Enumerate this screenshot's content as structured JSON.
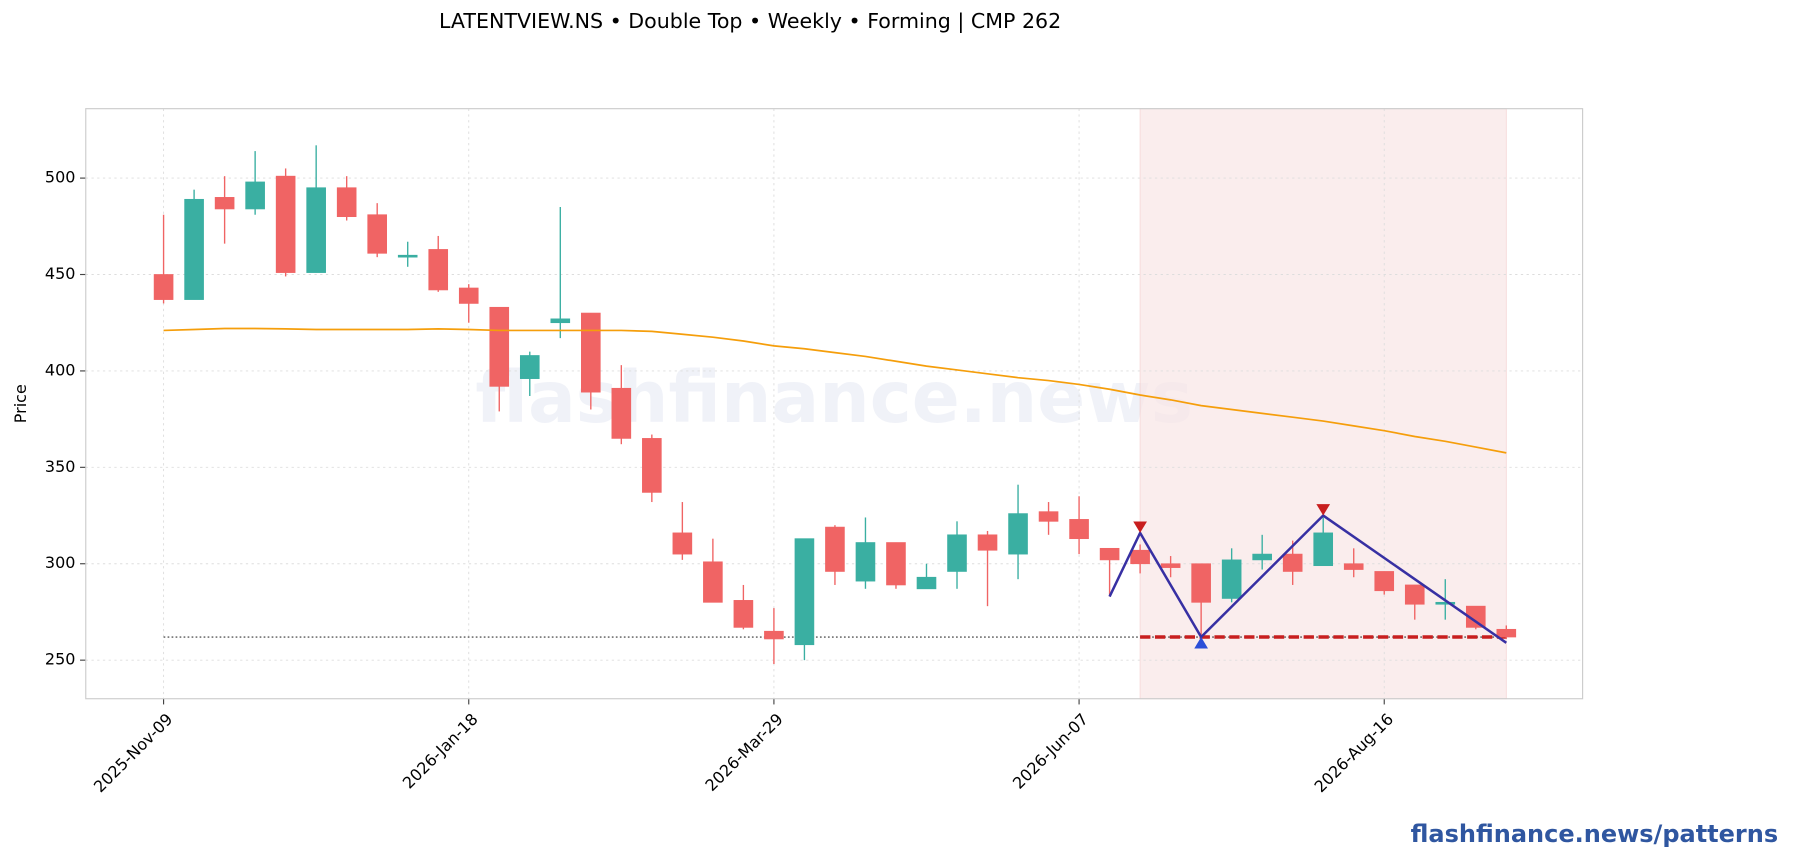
{
  "chart_data": {
    "type": "candlestick",
    "title": "LATENTVIEW.NS  •  Double Top  •  Weekly  •  Forming  |  CMP 262",
    "y_label": "Price",
    "watermark": "flashfinance.news",
    "footer": "flashfinance.news/patterns",
    "categories": [
      "2025-Nov-09",
      null,
      null,
      null,
      null,
      null,
      null,
      null,
      null,
      null,
      "2026-Jan-18",
      null,
      null,
      null,
      null,
      null,
      null,
      null,
      null,
      null,
      "2026-Mar-29",
      null,
      null,
      null,
      null,
      null,
      null,
      null,
      null,
      null,
      "2026-Jun-07",
      null,
      null,
      null,
      null,
      null,
      null,
      null,
      null,
      null,
      "2026-Aug-16",
      null,
      null,
      null,
      null
    ],
    "open": [
      450,
      437,
      490,
      484,
      501,
      451,
      495,
      481,
      459,
      463,
      443,
      433,
      396,
      425,
      430,
      391,
      365,
      316,
      301,
      281,
      265,
      258,
      319,
      291,
      311,
      287,
      296,
      315,
      305,
      327,
      323,
      308,
      307,
      300,
      300,
      282,
      302,
      305,
      299,
      300,
      296,
      289,
      279,
      278,
      266
    ],
    "high": [
      481,
      494,
      501,
      514,
      505,
      517,
      501,
      487,
      467,
      470,
      445,
      433,
      410,
      485,
      430,
      403,
      367,
      332,
      313,
      289,
      277,
      313,
      320,
      324,
      311,
      300,
      322,
      317,
      341,
      332,
      335,
      308,
      310,
      304,
      300,
      308,
      315,
      312,
      324,
      308,
      296,
      289,
      292,
      278,
      268
    ],
    "low": [
      435,
      437,
      466,
      481,
      449,
      451,
      478,
      459,
      454,
      441,
      425,
      379,
      387,
      417,
      380,
      362,
      332,
      302,
      280,
      266,
      248,
      250,
      289,
      287,
      287,
      287,
      287,
      278,
      292,
      315,
      305,
      283,
      295,
      293,
      262,
      280,
      297,
      289,
      299,
      293,
      284,
      271,
      271,
      266,
      261
    ],
    "close": [
      437,
      489,
      484,
      498,
      451,
      495,
      480,
      461,
      460,
      442,
      435,
      392,
      408,
      427,
      389,
      365,
      337,
      305,
      280,
      267,
      261,
      313,
      296,
      311,
      289,
      293,
      315,
      307,
      326,
      322,
      313,
      302,
      300,
      298,
      280,
      302,
      305,
      296,
      316,
      297,
      286,
      279,
      280,
      267,
      262
    ],
    "up_color": "#3aafa2",
    "down_color": "#f06464",
    "moving_average": {
      "color": "#f59e0b",
      "values": [
        421,
        421.5,
        422,
        422,
        421.8,
        421.5,
        421.5,
        421.5,
        421.5,
        421.8,
        421.5,
        421,
        421,
        421,
        421,
        421,
        420.5,
        419,
        417.5,
        415.5,
        413,
        411.5,
        409.5,
        407.5,
        405,
        402.5,
        400.5,
        398.5,
        396.5,
        395,
        393,
        390.5,
        387.5,
        385,
        382,
        380,
        378,
        376,
        374,
        371.5,
        369,
        366,
        363.5,
        360.5,
        357.5
      ]
    },
    "pattern": {
      "color": "#3730a3",
      "x": [
        31,
        32,
        34,
        38,
        44
      ],
      "values": [
        283,
        316,
        262,
        325,
        259
      ],
      "top_color": "#c81e1e",
      "bottom_color": "#2b4fd8"
    },
    "support": {
      "value": 262,
      "color": "#c81e1e"
    },
    "zone": [
      32,
      44
    ],
    "xlim": [
      -2.55,
      46.5
    ],
    "ylim": [
      230,
      536
    ],
    "yticks": [
      250,
      300,
      350,
      400,
      450,
      500
    ],
    "grid": true
  }
}
